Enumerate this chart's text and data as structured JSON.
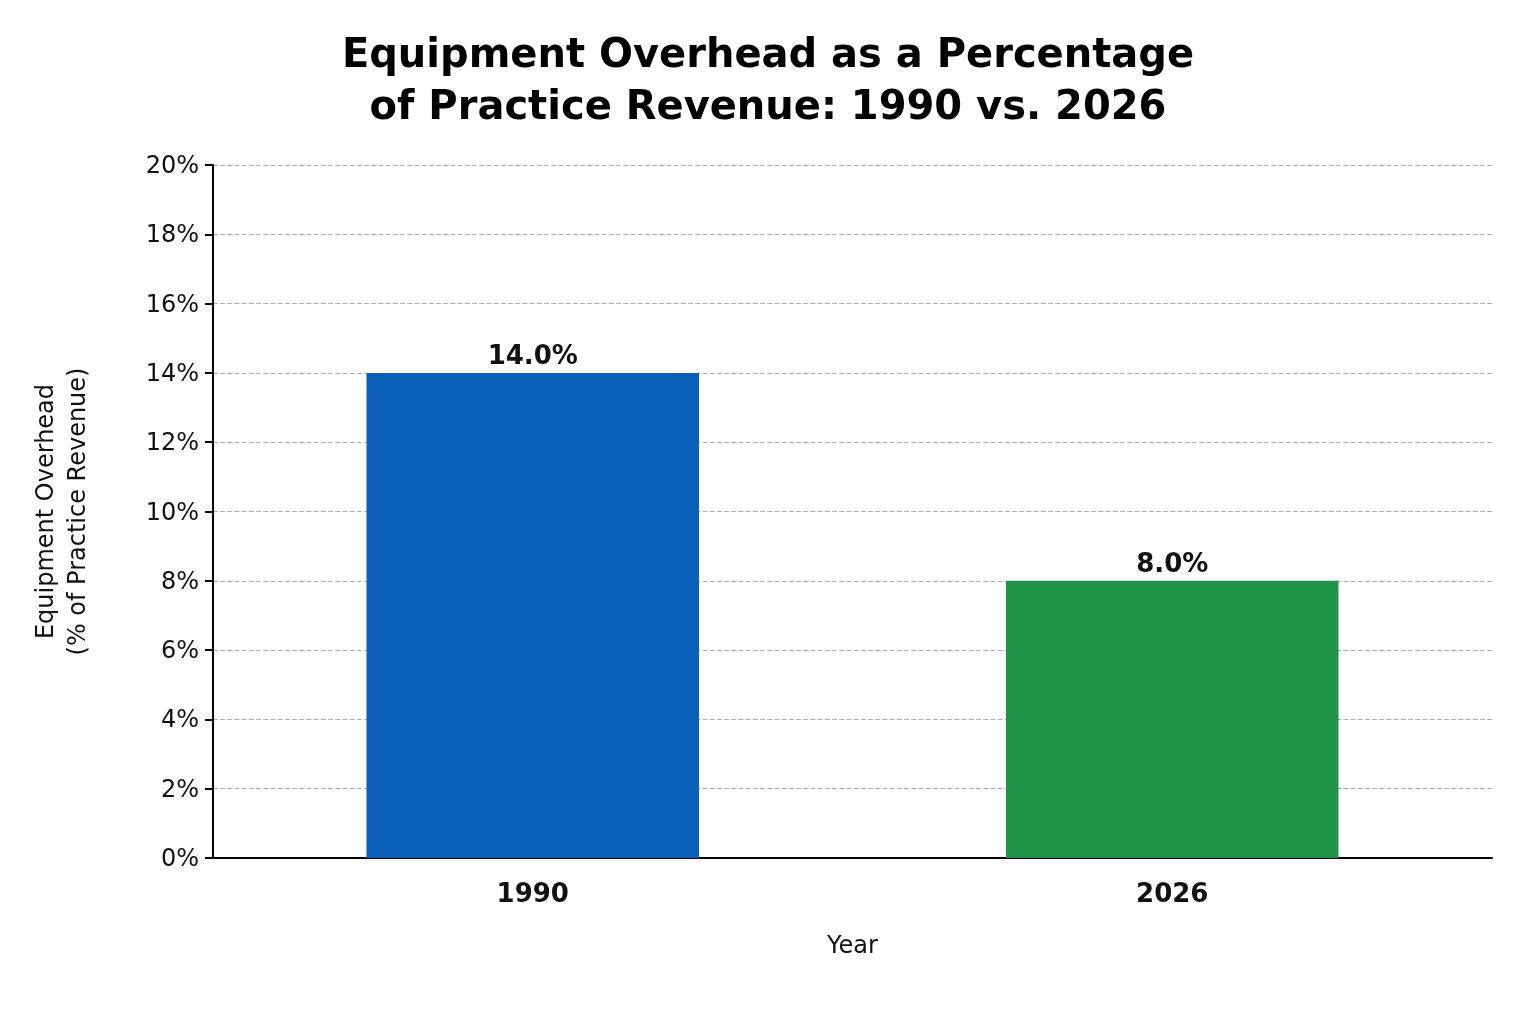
{
  "chart_data": {
    "type": "bar",
    "title": "Equipment Overhead as a Percentage\nof Practice Revenue: 1990 vs. 2026",
    "xlabel": "Year",
    "ylabel": "Equipment Overhead\n(% of Practice Revenue)",
    "categories": [
      "1990",
      "2026"
    ],
    "values": [
      14,
      8
    ],
    "colors": [
      "#0a60b8",
      "#1f9448"
    ],
    "value_labels": [
      "14.0%",
      "8.0%"
    ],
    "ylim": [
      0,
      20
    ],
    "yticks": [
      {
        "value": 0,
        "label": "0%"
      },
      {
        "value": 2,
        "label": "2%"
      },
      {
        "value": 4,
        "label": "4%"
      },
      {
        "value": 6,
        "label": "6%"
      },
      {
        "value": 8,
        "label": "8%"
      },
      {
        "value": 10,
        "label": "10%"
      },
      {
        "value": 12,
        "label": "12%"
      },
      {
        "value": 14,
        "label": "14%"
      },
      {
        "value": 16,
        "label": "16%"
      },
      {
        "value": 18,
        "label": "18%"
      },
      {
        "value": 20,
        "label": "20%"
      }
    ],
    "grid": "y"
  }
}
